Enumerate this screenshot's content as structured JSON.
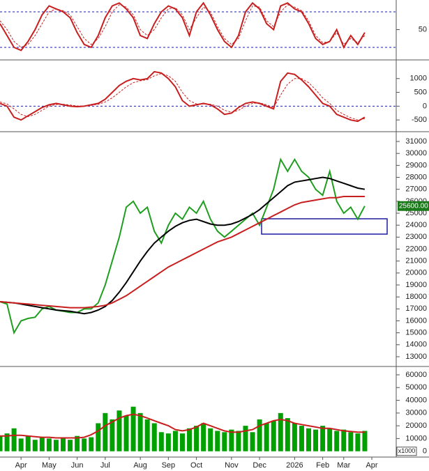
{
  "chart_data": [
    {
      "type": "line",
      "ylim": [
        0,
        100
      ],
      "yticks": [
        50
      ],
      "reference_lines": [
        20,
        80
      ],
      "series": [
        {
          "color": "#c81e1e",
          "style": "solid",
          "values": [
            60,
            40,
            20,
            15,
            30,
            50,
            75,
            90,
            85,
            80,
            70,
            45,
            25,
            20,
            40,
            70,
            90,
            95,
            85,
            70,
            40,
            35,
            60,
            80,
            90,
            85,
            70,
            40,
            80,
            95,
            75,
            50,
            30,
            20,
            40,
            80,
            95,
            85,
            60,
            50,
            90,
            95,
            85,
            80,
            60,
            35,
            25,
            30,
            50,
            20,
            40,
            25,
            45,
            null
          ]
        },
        {
          "color": "#c81e1e",
          "style": "dashed",
          "values": [
            65,
            50,
            30,
            20,
            25,
            40,
            60,
            80,
            85,
            82,
            75,
            55,
            35,
            25,
            35,
            55,
            80,
            92,
            88,
            75,
            50,
            40,
            50,
            70,
            85,
            87,
            75,
            50,
            70,
            88,
            80,
            55,
            35,
            25,
            35,
            65,
            90,
            88,
            65,
            55,
            80,
            92,
            88,
            82,
            65,
            40,
            28,
            30,
            45,
            25,
            35,
            28,
            40,
            null
          ]
        }
      ]
    },
    {
      "type": "line",
      "ylim": [
        -900,
        1625
      ],
      "yticks": [
        1000,
        500,
        0,
        -500
      ],
      "reference_lines": [
        0
      ],
      "series": [
        {
          "color": "#c81e1e",
          "style": "solid",
          "values": [
            100,
            0,
            -400,
            -500,
            -350,
            -200,
            -50,
            50,
            100,
            50,
            0,
            -20,
            0,
            50,
            100,
            250,
            500,
            750,
            900,
            1000,
            950,
            1000,
            1250,
            1200,
            1000,
            700,
            200,
            0,
            50,
            100,
            50,
            -100,
            -300,
            -250,
            -50,
            100,
            150,
            100,
            0,
            -100,
            900,
            1200,
            1150,
            950,
            700,
            400,
            100,
            0,
            -300,
            -400,
            -500,
            -550,
            -400,
            null
          ]
        },
        {
          "color": "#c81e1e",
          "style": "dashed",
          "values": [
            150,
            80,
            -100,
            -300,
            -380,
            -300,
            -150,
            0,
            60,
            70,
            40,
            10,
            0,
            30,
            70,
            150,
            300,
            500,
            700,
            850,
            920,
            960,
            1100,
            1180,
            1100,
            900,
            500,
            200,
            80,
            80,
            70,
            0,
            -150,
            -220,
            -150,
            0,
            100,
            120,
            50,
            -50,
            400,
            800,
            1000,
            1000,
            850,
            600,
            300,
            100,
            -150,
            -300,
            -420,
            -500,
            -450,
            null
          ]
        }
      ]
    },
    {
      "type": "line",
      "ylim": [
        12240,
        31760
      ],
      "yticks": [
        13000,
        14000,
        15000,
        16000,
        17000,
        18000,
        19000,
        20000,
        21000,
        22000,
        23000,
        24000,
        25000,
        26000,
        27000,
        28000,
        29000,
        30000,
        31000
      ],
      "last_price": {
        "value": 25600,
        "label": "25600.00"
      },
      "series": [
        {
          "color": "#1e9e1e",
          "style": "solid",
          "values": [
            17600,
            17400,
            15000,
            16000,
            16200,
            16300,
            17000,
            17200,
            16900,
            16800,
            16700,
            16700,
            17000,
            17000,
            17500,
            19000,
            21000,
            23000,
            25500,
            26000,
            25000,
            25500,
            23500,
            22500,
            24000,
            25000,
            24500,
            25500,
            25000,
            26000,
            24500,
            23500,
            23000,
            23500,
            24000,
            24500,
            25000,
            24000,
            25500,
            27000,
            29500,
            28500,
            29500,
            28500,
            28000,
            27000,
            26500,
            28500,
            26000,
            25000,
            25500,
            24500,
            25600,
            null
          ]
        },
        {
          "color": "#000000",
          "style": "solid",
          "values": [
            17600,
            17550,
            17500,
            17400,
            17300,
            17200,
            17100,
            17000,
            16900,
            16850,
            16800,
            16700,
            16600,
            16700,
            16900,
            17200,
            17700,
            18400,
            19200,
            20100,
            21000,
            21800,
            22500,
            23000,
            23500,
            23900,
            24200,
            24400,
            24500,
            24300,
            24100,
            24000,
            24000,
            24100,
            24300,
            24600,
            24900,
            25300,
            25800,
            26300,
            26800,
            27300,
            27600,
            27700,
            27800,
            27900,
            28000,
            27900,
            27700,
            27500,
            27300,
            27100,
            27000,
            null
          ]
        },
        {
          "color": "#c81e1e",
          "style": "solid",
          "values": [
            17600,
            17550,
            17500,
            17450,
            17400,
            17350,
            17300,
            17250,
            17200,
            17150,
            17100,
            17100,
            17100,
            17150,
            17200,
            17300,
            17500,
            17800,
            18100,
            18500,
            18900,
            19300,
            19700,
            20100,
            20500,
            20800,
            21100,
            21400,
            21700,
            22000,
            22300,
            22600,
            22800,
            23000,
            23300,
            23600,
            23900,
            24200,
            24500,
            24800,
            25100,
            25400,
            25700,
            25900,
            26000,
            26100,
            26200,
            26300,
            26300,
            26400,
            26400,
            26400,
            26400,
            null
          ]
        }
      ]
    },
    {
      "type": "bar",
      "ylim": [
        -4000,
        66000
      ],
      "yticks": [
        0,
        10000,
        20000,
        30000,
        40000,
        50000,
        60000
      ],
      "unit_label": "x1000",
      "categories": [
        null,
        null,
        null,
        "Apr",
        null,
        null,
        null,
        "May",
        null,
        null,
        null,
        "Jun",
        null,
        null,
        null,
        "Jul",
        null,
        null,
        null,
        null,
        "Aug",
        null,
        null,
        null,
        "Sep",
        null,
        null,
        null,
        "Oct",
        null,
        null,
        null,
        null,
        "Nov",
        null,
        null,
        null,
        "Dec",
        null,
        null,
        null,
        null,
        "2026",
        null,
        null,
        null,
        "Feb",
        null,
        null,
        "Mar",
        null,
        null,
        null,
        "Apr"
      ],
      "series": [
        {
          "color": "#00a000",
          "style": "bar",
          "values": [
            12000,
            14000,
            18000,
            10000,
            12000,
            9000,
            11000,
            10000,
            9000,
            10000,
            9000,
            12000,
            10000,
            11000,
            22000,
            30000,
            25000,
            32000,
            28000,
            35000,
            30000,
            25000,
            22000,
            15000,
            14000,
            16000,
            14000,
            18000,
            20000,
            22000,
            18000,
            16000,
            15000,
            17000,
            16000,
            20000,
            15000,
            25000,
            22000,
            24000,
            30000,
            26000,
            22000,
            20000,
            18000,
            17000,
            20000,
            18000,
            16000,
            17000,
            15000,
            14000,
            16000,
            null
          ]
        },
        {
          "color": "#c81e1e",
          "style": "solid",
          "values": [
            12000,
            12000,
            12500,
            12500,
            12000,
            11500,
            11000,
            11000,
            10500,
            10500,
            10500,
            10500,
            11000,
            13000,
            16000,
            20000,
            23000,
            26000,
            28000,
            29000,
            28000,
            26000,
            24000,
            22000,
            20000,
            17000,
            16000,
            17000,
            19000,
            22000,
            20000,
            18000,
            16000,
            15000,
            15000,
            16000,
            17000,
            20000,
            22000,
            24000,
            25000,
            24000,
            22000,
            21000,
            20000,
            19000,
            18000,
            18000,
            17000,
            16000,
            15500,
            15000,
            15000,
            null
          ]
        }
      ]
    }
  ]
}
